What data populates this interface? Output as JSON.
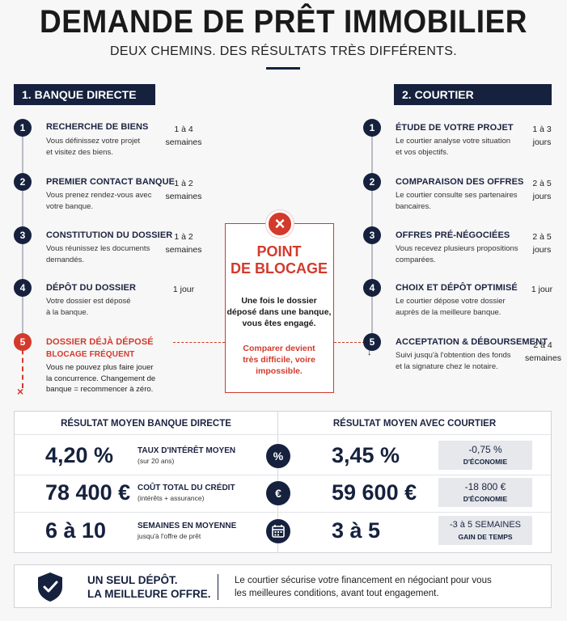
{
  "header": {
    "title": "DEMANDE DE PRÊT IMMOBILIER",
    "subtitle": "DEUX CHEMINS. DES RÉSULTATS TRÈS DIFFÉRENTS."
  },
  "left": {
    "heading": "1. BANQUE DIRECTE",
    "steps": [
      {
        "num": "1",
        "title": "RECHERCHE DE BIENS",
        "desc1": "Vous définissez votre projet",
        "desc2": "et visitez des biens.",
        "dur1": "1 à 4",
        "dur2": "semaines"
      },
      {
        "num": "2",
        "title": "PREMIER CONTACT BANQUE",
        "desc1": "Vous prenez rendez-vous avec",
        "desc2": "votre banque.",
        "dur1": "1 à 2",
        "dur2": "semaines"
      },
      {
        "num": "3",
        "title": "CONSTITUTION DU DOSSIER",
        "desc1": "Vous réunissez les documents",
        "desc2": "demandés.",
        "dur1": "1 à 2",
        "dur2": "semaines"
      },
      {
        "num": "4",
        "title": "DÉPÔT DU DOSSIER",
        "desc1": "Votre dossier est déposé",
        "desc2": "à la banque.",
        "dur1": "1 jour",
        "dur2": ""
      }
    ],
    "blocked": {
      "num": "5",
      "title": "DOSSIER DÉJÀ DÉPOSÉ",
      "tag": "BLOCAGE FRÉQUENT",
      "desc1": "Vous ne pouvez plus faire jouer",
      "desc2": "la concurrence. Changement de",
      "desc3": "banque = recommencer à zéro.",
      "end_mark": "×"
    }
  },
  "right": {
    "heading": "2. COURTIER",
    "steps": [
      {
        "num": "1",
        "title": "ÉTUDE DE VOTRE PROJET",
        "desc1": "Le courtier analyse votre situation",
        "desc2": "et vos objectifs.",
        "dur1": "1 à 3",
        "dur2": "jours"
      },
      {
        "num": "2",
        "title": "COMPARAISON DES OFFRES",
        "desc1": "Le courtier consulte ses partenaires",
        "desc2": "bancaires.",
        "dur1": "2 à 5",
        "dur2": "jours"
      },
      {
        "num": "3",
        "title": "OFFRES PRÉ-NÉGOCIÉES",
        "desc1": "Vous recevez plusieurs propositions",
        "desc2": "comparées.",
        "dur1": "2 à 5",
        "dur2": "jours"
      },
      {
        "num": "4",
        "title": "CHOIX ET DÉPÔT OPTIMISÉ",
        "desc1": "Le courtier dépose votre dossier",
        "desc2": "auprès de la meilleure banque.",
        "dur1": "1 jour",
        "dur2": ""
      },
      {
        "num": "5",
        "title": "ACCEPTATION & DÉBOURSEMENT",
        "desc1": "Suivi jusqu'à l'obtention des fonds",
        "desc2": "et la signature chez le notaire.",
        "dur1": "2 à 4",
        "dur2": "semaines"
      }
    ]
  },
  "blocking": {
    "icon": "×",
    "title1": "POINT",
    "title2": "DE BLOCAGE",
    "text1": "Une fois le dossier",
    "text2": "déposé dans une banque,",
    "text3": "vous êtes engagé.",
    "warn1": "Comparer devient",
    "warn2": "très difficile, voire",
    "warn3": "impossible."
  },
  "results": {
    "left_heading": "RÉSULTAT MOYEN BANQUE DIRECTE",
    "right_heading": "RÉSULTAT MOYEN AVEC COURTIER",
    "rows": [
      {
        "bank": "4,20 %",
        "label": "TAUX D'INTÉRÊT MOYEN",
        "sub": "(sur 20 ans)",
        "icon": "%",
        "broker": "3,45 %",
        "gain": "-0,75 %",
        "gain_label": "D'ÉCONOMIE"
      },
      {
        "bank": "78 400 €",
        "label": "COÛT TOTAL DU CRÉDIT",
        "sub": "(intérêts + assurance)",
        "icon": "€",
        "broker": "59 600 €",
        "gain": "-18 800 €",
        "gain_label": "D'ÉCONOMIE"
      },
      {
        "bank": "6 à 10",
        "label": "SEMAINES EN MOYENNE",
        "sub": "jusqu'à l'offre de prêt",
        "icon": "calendar",
        "broker": "3 à 5",
        "gain": "-3 à 5 SEMAINES",
        "gain_label": "GAIN DE TEMPS"
      }
    ]
  },
  "footer": {
    "title1": "UN SEUL DÉPÔT.",
    "title2": "LA MEILLEURE OFFRE.",
    "text1": "Le courtier sécurise votre financement en négociant pour vous",
    "text2": "les meilleures conditions, avant tout engagement."
  },
  "colors": {
    "navy": "#16213e",
    "red": "#d33a2c"
  }
}
